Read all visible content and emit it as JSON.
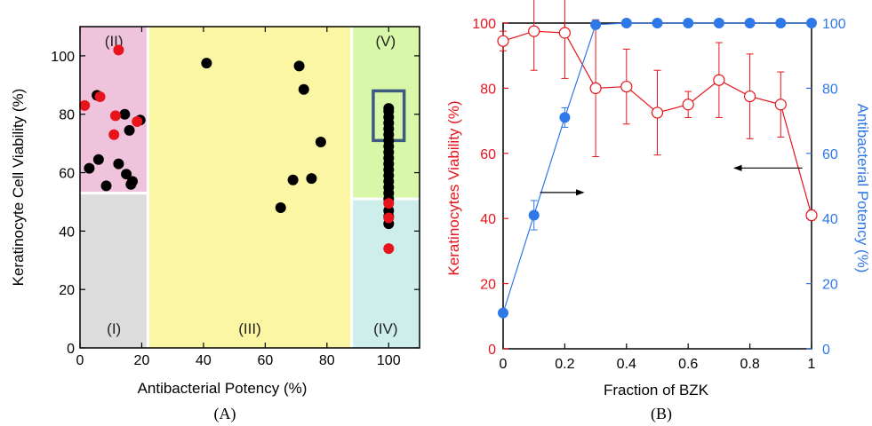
{
  "chart_data": [
    {
      "panel": "(A)",
      "type": "scatter",
      "xlabel": "Antibacterial Potency (%)",
      "ylabel": "Keratinocyte Cell Viability (%)",
      "xlim": [
        0,
        110
      ],
      "ylim": [
        0,
        110
      ],
      "xticks": [
        "0",
        "20",
        "40",
        "60",
        "80",
        "100"
      ],
      "yticks": [
        "0",
        "20",
        "40",
        "60",
        "80",
        "100"
      ],
      "colors": {
        "black": "#000000",
        "red": "#e8141b"
      },
      "regions": [
        {
          "label": "(I)",
          "x": [
            0,
            22
          ],
          "y": [
            0,
            53
          ],
          "color": "#dcdcdc"
        },
        {
          "label": "(II)",
          "x": [
            0,
            22
          ],
          "y": [
            53,
            110
          ],
          "color": "#f0c3dd"
        },
        {
          "label": "(III)",
          "x": [
            22,
            88
          ],
          "y": [
            0,
            110
          ],
          "color": "#fbf6a3"
        },
        {
          "label": "(IV)",
          "x": [
            88,
            110
          ],
          "y": [
            0,
            51
          ],
          "color": "#cdeeea"
        },
        {
          "label": "(V)",
          "x": [
            88,
            110
          ],
          "y": [
            51,
            110
          ],
          "color": "#d8f7a8"
        }
      ],
      "highlight_box": {
        "x": [
          95,
          105
        ],
        "y": [
          71,
          88
        ],
        "color": "#3d5a80"
      },
      "series": [
        {
          "color": "black",
          "points": [
            [
              3,
              61.5
            ],
            [
              5.5,
              86.5
            ],
            [
              6,
              64.5
            ],
            [
              8.5,
              55.5
            ],
            [
              12.5,
              63
            ],
            [
              14.5,
              80
            ],
            [
              15,
              59.5
            ],
            [
              16,
              74.5
            ],
            [
              16.5,
              56
            ],
            [
              17,
              57
            ],
            [
              19.5,
              78
            ],
            [
              41,
              97.5
            ],
            [
              65,
              48
            ],
            [
              69,
              57.5
            ],
            [
              71,
              96.5
            ],
            [
              72.5,
              88.5
            ],
            [
              75,
              58
            ],
            [
              78,
              70.5
            ],
            [
              100,
              82
            ],
            [
              100,
              81
            ],
            [
              100,
              79
            ],
            [
              100,
              77
            ],
            [
              100,
              75
            ],
            [
              100,
              73
            ],
            [
              100,
              71
            ],
            [
              100,
              69
            ],
            [
              100,
              67
            ],
            [
              100,
              65
            ],
            [
              100,
              63
            ],
            [
              100,
              61
            ],
            [
              100,
              59
            ],
            [
              100,
              57
            ],
            [
              100,
              55
            ],
            [
              100,
              53
            ],
            [
              100,
              51
            ],
            [
              100,
              47
            ],
            [
              100,
              45
            ],
            [
              100,
              42.5
            ]
          ]
        },
        {
          "color": "red",
          "points": [
            [
              1.5,
              83
            ],
            [
              6.5,
              86
            ],
            [
              11,
              73
            ],
            [
              11.5,
              79.5
            ],
            [
              12.5,
              102
            ],
            [
              18.5,
              77.5
            ],
            [
              100,
              49.5
            ],
            [
              100,
              44.5
            ],
            [
              100,
              34
            ]
          ]
        }
      ]
    },
    {
      "panel": "(B)",
      "type": "line",
      "xlabel": "Fraction of BZK",
      "ylabel_left": "Keratinocytes Viability (%)",
      "ylabel_right": "Antibacterial Potency (%)",
      "xlim": [
        0,
        1
      ],
      "ylim": [
        0,
        100
      ],
      "xticks": [
        "0",
        "0.2",
        "0.4",
        "0.6",
        "0.8",
        "1"
      ],
      "yticks": [
        "0",
        "20",
        "40",
        "60",
        "80",
        "100"
      ],
      "x": [
        0,
        0.1,
        0.2,
        0.3,
        0.4,
        0.5,
        0.6,
        0.7,
        0.8,
        0.9,
        1.0
      ],
      "series": [
        {
          "axis": "left",
          "color": "#e8141b",
          "marker": "open-circle",
          "values": [
            94.5,
            97.5,
            97,
            80,
            80.5,
            72.5,
            75,
            82.5,
            77.5,
            75,
            41
          ],
          "error": [
            3,
            12,
            14,
            21,
            11.5,
            13,
            4,
            11.5,
            13,
            10,
            1.5
          ]
        },
        {
          "axis": "right",
          "color": "#2f78e8",
          "marker": "filled-circle",
          "values": [
            11,
            41,
            71,
            99.5,
            100,
            100,
            100,
            100,
            100,
            100,
            100
          ],
          "error": [
            0,
            4.5,
            3,
            0,
            0,
            0,
            0,
            0,
            0,
            0,
            0
          ]
        }
      ],
      "arrows": [
        {
          "direction": "right",
          "from": [
            0.12,
            48
          ],
          "to": [
            0.26,
            48
          ],
          "color": "#000000"
        },
        {
          "direction": "left",
          "from": [
            0.97,
            55.5
          ],
          "to": [
            0.75,
            55.5
          ],
          "color": "#000000"
        }
      ]
    }
  ]
}
